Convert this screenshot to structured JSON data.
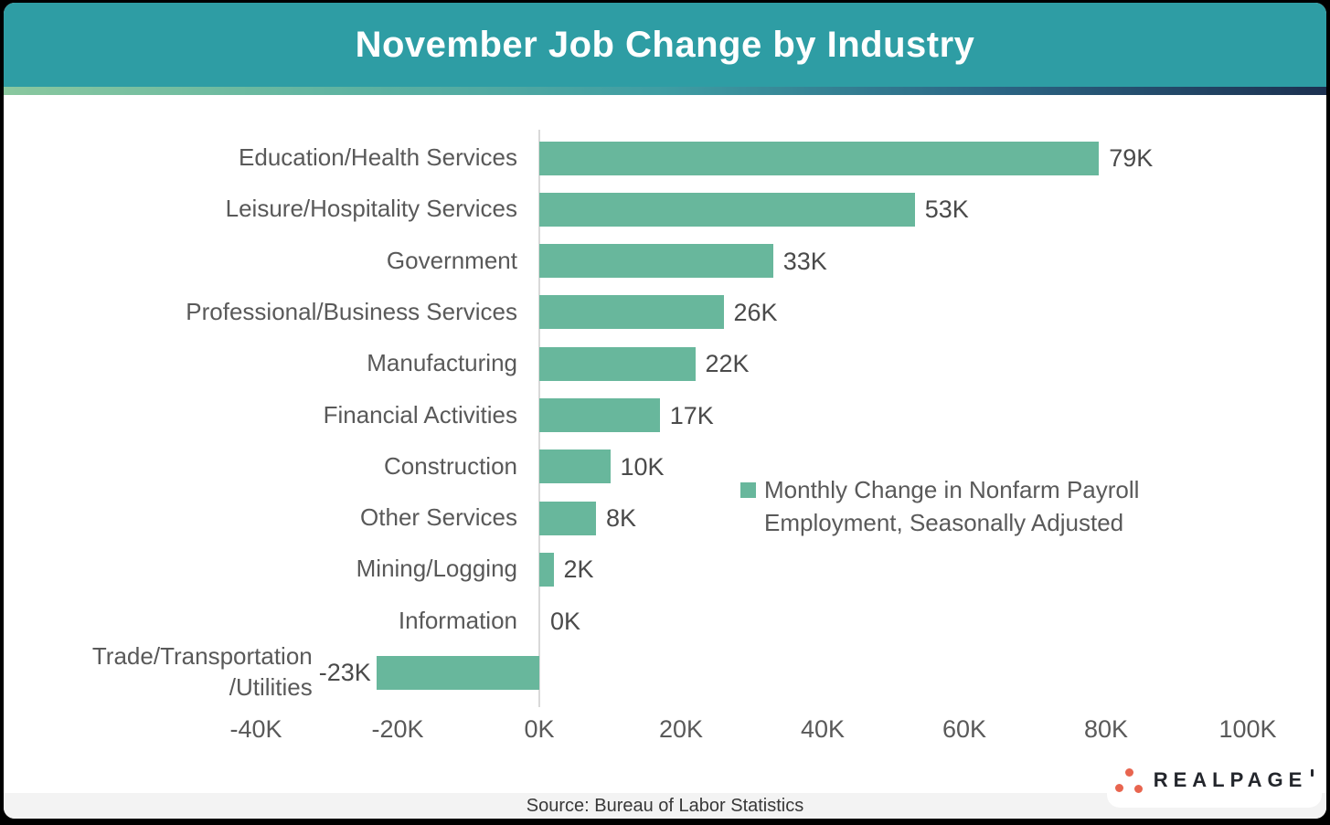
{
  "chart_data": {
    "type": "bar",
    "orientation": "horizontal",
    "title": "November Job Change by Industry",
    "categories": [
      "Education/Health Services",
      "Leisure/Hospitality Services",
      "Government",
      "Professional/Business Services",
      "Manufacturing",
      "Financial Activities",
      "Construction",
      "Other Services",
      "Mining/Logging",
      "Information",
      "Trade/Transportation\n/Utilities"
    ],
    "values": [
      79,
      53,
      33,
      26,
      22,
      17,
      10,
      8,
      2,
      0,
      -23
    ],
    "value_labels": [
      "79K",
      "53K",
      "33K",
      "26K",
      "22K",
      "17K",
      "10K",
      "8K",
      "2K",
      "0K",
      "-23K"
    ],
    "unit": "K",
    "x_ticks": [
      "-40K",
      "-20K",
      "0K",
      "20K",
      "40K",
      "60K",
      "80K",
      "100K"
    ],
    "x_tick_values": [
      -40,
      -20,
      0,
      20,
      40,
      60,
      80,
      100
    ],
    "xlim": [
      -40,
      100
    ],
    "grid": false,
    "legend": [
      "Monthly Change in Nonfarm Payroll Employment, Seasonally Adjusted"
    ],
    "legend_position": "middle-right",
    "bar_color": "#68B79C"
  },
  "footer": {
    "source": "Source: Bureau of Labor Statistics"
  },
  "logo": {
    "wordmark": "REALPAGE"
  },
  "colors": {
    "header_bg": "#2E9DA4",
    "bar_green": "#68B79C",
    "logo_dot_coral": "#E8654F",
    "axis_line": "#D9D9D9",
    "label_gray": "#595959",
    "footer_bg": "#F3F3F3",
    "gradient_stops": [
      "#8AC89F",
      "#60B4A1",
      "#3F9DA3",
      "#2B6584",
      "#1C3050"
    ]
  }
}
